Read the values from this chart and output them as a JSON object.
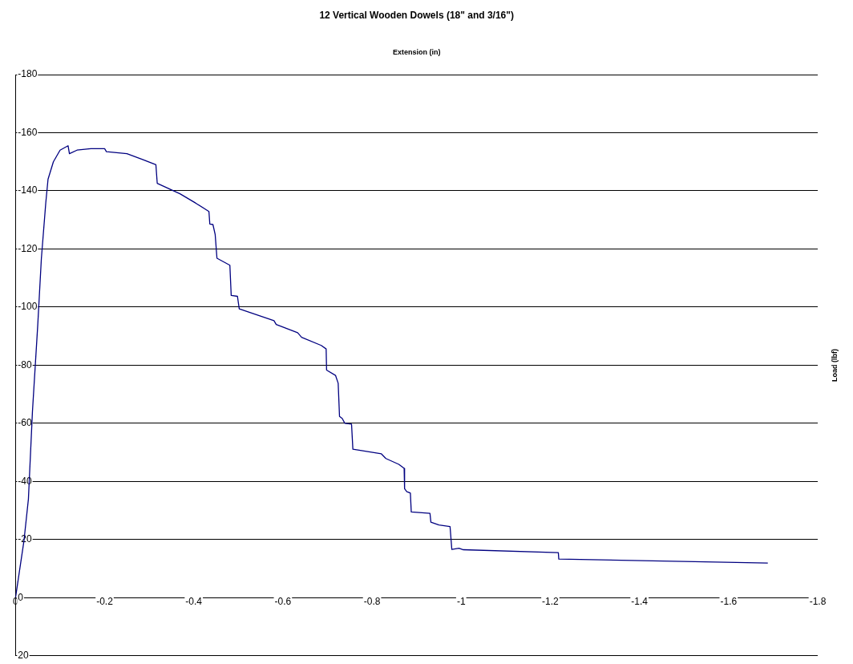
{
  "chart_data": {
    "type": "line",
    "title": "12 Vertical Wooden Dowels (18\" and 3/16\")",
    "xlabel": "Extension (in)",
    "ylabel": "Load (lbf)",
    "x": [
      0,
      -0.019,
      -0.029,
      -0.038,
      -0.05,
      -0.058,
      -0.068,
      -0.073,
      -0.085,
      -0.1,
      -0.118,
      -0.121,
      -0.138,
      -0.169,
      -0.2,
      -0.204,
      -0.25,
      -0.285,
      -0.315,
      -0.318,
      -0.369,
      -0.404,
      -0.434,
      -0.436,
      -0.443,
      -0.448,
      -0.452,
      -0.481,
      -0.484,
      -0.498,
      -0.502,
      -0.58,
      -0.585,
      -0.633,
      -0.642,
      -0.686,
      -0.697,
      -0.698,
      -0.718,
      -0.724,
      -0.727,
      -0.733,
      -0.739,
      -0.754,
      -0.757,
      -0.821,
      -0.831,
      -0.86,
      -0.872,
      -0.873,
      -0.878,
      -0.886,
      -0.888,
      -0.93,
      -0.932,
      -0.95,
      -0.975,
      -0.979,
      -0.995,
      -1.005,
      -1.218,
      -1.219,
      -1.688
    ],
    "series": [
      {
        "color": "#000080",
        "values": [
          0,
          -19.6,
          -34,
          -64,
          -94,
          -116.6,
          -136,
          -144,
          -150,
          -154,
          -155.5,
          -152.8,
          -154,
          -154.5,
          -154.5,
          -153.5,
          -152.8,
          -150.8,
          -149,
          -142.6,
          -139,
          -135.8,
          -132.9,
          -128.6,
          -128.4,
          -125,
          -116.8,
          -114.4,
          -104,
          -103.7,
          -99.4,
          -95.3,
          -94,
          -91.2,
          -89.6,
          -86.8,
          -85.6,
          -78.3,
          -76.5,
          -73.8,
          -62.4,
          -61.7,
          -60,
          -59.7,
          -51.1,
          -49.5,
          -47.9,
          -45.9,
          -44.5,
          -37.5,
          -36.5,
          -36,
          -29.5,
          -29,
          -26,
          -25,
          -24.5,
          -16.6,
          -17,
          -16.5,
          -15.5,
          -13.3,
          -11.9
        ]
      }
    ],
    "xlim": [
      0,
      -1.8
    ],
    "xticks": [
      0,
      -0.2,
      -0.4,
      -0.6,
      -0.8,
      -1,
      -1.2,
      -1.4,
      -1.6,
      -1.8
    ],
    "ylim": [
      20,
      -180
    ],
    "yticks": [
      -180,
      -160,
      -140,
      -120,
      -100,
      -80,
      -60,
      -40,
      -20,
      0,
      20
    ],
    "grid": "y",
    "legend": false,
    "marker": "none",
    "line_style": "solid"
  }
}
